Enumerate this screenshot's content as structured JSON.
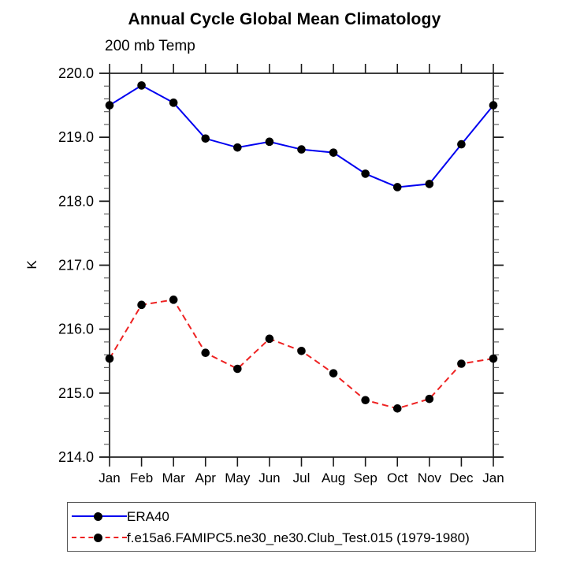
{
  "figure": {
    "background": "#ffffff"
  },
  "chart_data": {
    "type": "line",
    "title": "Annual Cycle Global Mean Climatology",
    "subtitle": "200 mb Temp",
    "ylabel": "K",
    "xlabel": "",
    "categories": [
      "Jan",
      "Feb",
      "Mar",
      "Apr",
      "May",
      "Jun",
      "Jul",
      "Aug",
      "Sep",
      "Oct",
      "Nov",
      "Dec",
      "Jan"
    ],
    "series": [
      {
        "name": "ERA40",
        "color": "#0000f0",
        "line_style": "solid",
        "marker": "filled-black-circle",
        "values": [
          219.5,
          219.81,
          219.54,
          218.98,
          218.84,
          218.93,
          218.81,
          218.76,
          218.43,
          218.22,
          218.27,
          218.89,
          219.5
        ]
      },
      {
        "name": "f.e15a6.FAMIPC5.ne30_ne30.Club_Test.015 (1979-1980)",
        "color": "#ee2222",
        "line_style": "dashed",
        "marker": "filled-black-circle",
        "values": [
          215.54,
          216.38,
          216.46,
          215.63,
          215.38,
          215.85,
          215.66,
          215.31,
          214.89,
          214.76,
          214.91,
          215.46,
          215.54
        ]
      }
    ],
    "ylim": [
      214.0,
      220.0
    ],
    "ytick_major_step": 1.0,
    "ytick_minor_step": 0.2,
    "ytick_labels": [
      "214.0",
      "215.0",
      "216.0",
      "217.0",
      "218.0",
      "219.0",
      "220.0"
    ],
    "grid": false,
    "axes_box": true,
    "tick_direction": "out",
    "legend_position": "bottom-left-box",
    "marker_color": "#000000",
    "axis_color": "#3d3d3d",
    "tick_color": "#1a1a1a",
    "minor_tick_color": "#555555"
  }
}
